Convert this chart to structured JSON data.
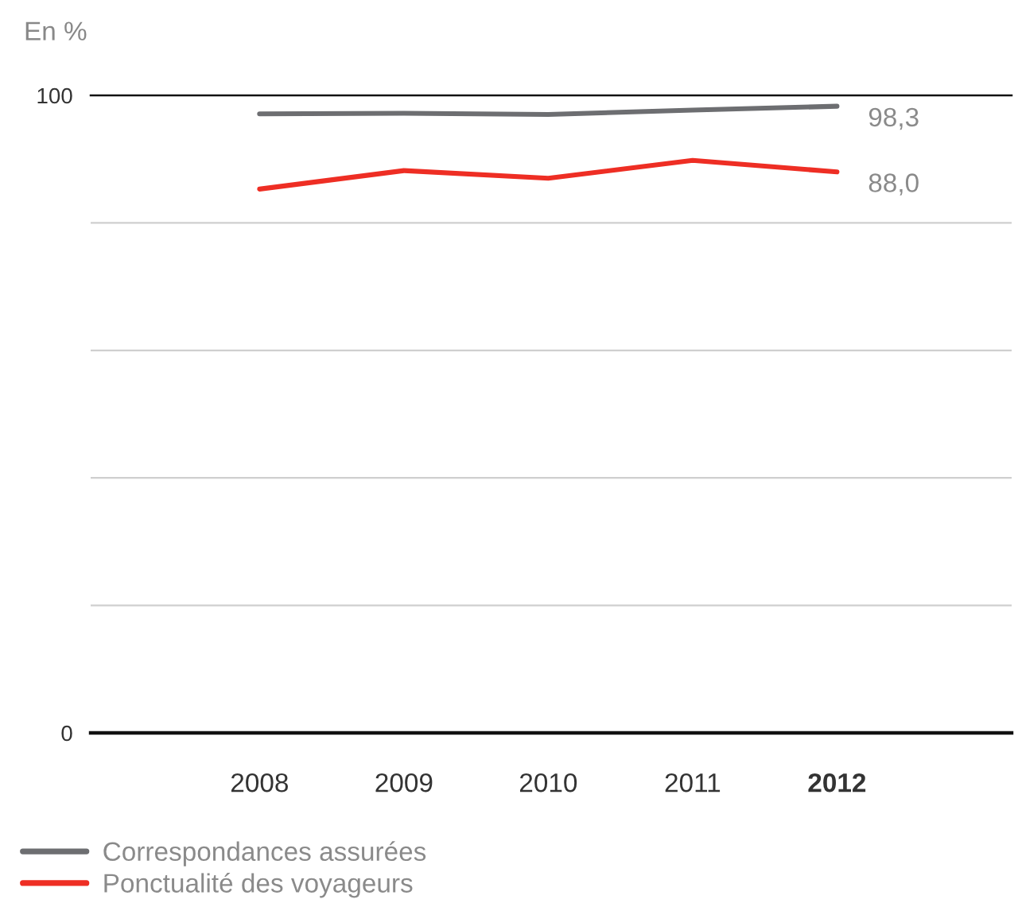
{
  "chart_data": {
    "type": "line",
    "ylabel": "En %",
    "categories": [
      "2008",
      "2009",
      "2010",
      "2011",
      "2012"
    ],
    "series": [
      {
        "name": "Correspondances assurées",
        "color": "#6d6e71",
        "values": [
          97.1,
          97.2,
          97.0,
          97.7,
          98.3
        ],
        "value_labels": [
          null,
          null,
          null,
          null,
          "98,3"
        ]
      },
      {
        "name": "Ponctualité des voyageurs",
        "color": "#ee2e24",
        "values": [
          85.3,
          88.2,
          87.0,
          89.8,
          88.0
        ],
        "value_labels": [
          null,
          null,
          null,
          null,
          "88,0"
        ]
      }
    ],
    "ylim": [
      0,
      100
    ],
    "yticks": [
      0,
      {
        "value": 20,
        "label": null
      },
      {
        "value": 40,
        "label": null
      },
      {
        "value": 60,
        "label": null
      },
      {
        "value": 80,
        "label": null
      },
      100
    ],
    "grid": "y",
    "legend": "bottom",
    "marker": "none",
    "line_style": "solid"
  }
}
